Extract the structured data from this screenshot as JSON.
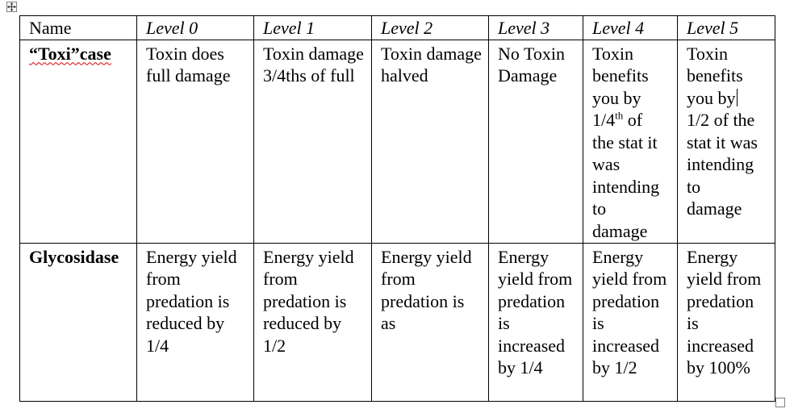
{
  "table": {
    "header": {
      "name": "Name",
      "levels": [
        "Level 0",
        "Level 1",
        "Level 2",
        "Level 3",
        "Level 4",
        "Level 5"
      ]
    },
    "rows": [
      {
        "name": "“Toxi”case",
        "cells": [
          "Toxin does full damage",
          "Toxin damage 3/4ths of full",
          "Toxin damage halved",
          "No Toxin Damage",
          "Toxin benefits you by 1/4th of the stat it was intending to damage",
          "Toxin benefits you by 1/2 of the stat it was intending to damage"
        ]
      },
      {
        "name": "Glycosidase",
        "cells": [
          "Energy yield from predation is reduced by 1/4",
          "Energy yield from predation is reduced by 1/2",
          "Energy yield from predation is as",
          "Energy yield from predation is increased by 1/4",
          "Energy yield from predation is increased by 1/2",
          "Energy yield from predation is increased by 100%"
        ]
      }
    ]
  },
  "l4": {
    "a": "Toxin",
    "b": "benefits",
    "c": "you by",
    "d1": "1/4",
    "d_sup": "th",
    "d2": " of",
    "e": "the stat it",
    "f": "was",
    "g": "intending",
    "h": "to",
    "i": "damage"
  },
  "l5": {
    "a": "Toxin",
    "b": "benefits",
    "c": "you by",
    "d": "1/2 of the",
    "e": "stat it was",
    "f": "intending",
    "g": "to",
    "h": "damage"
  }
}
